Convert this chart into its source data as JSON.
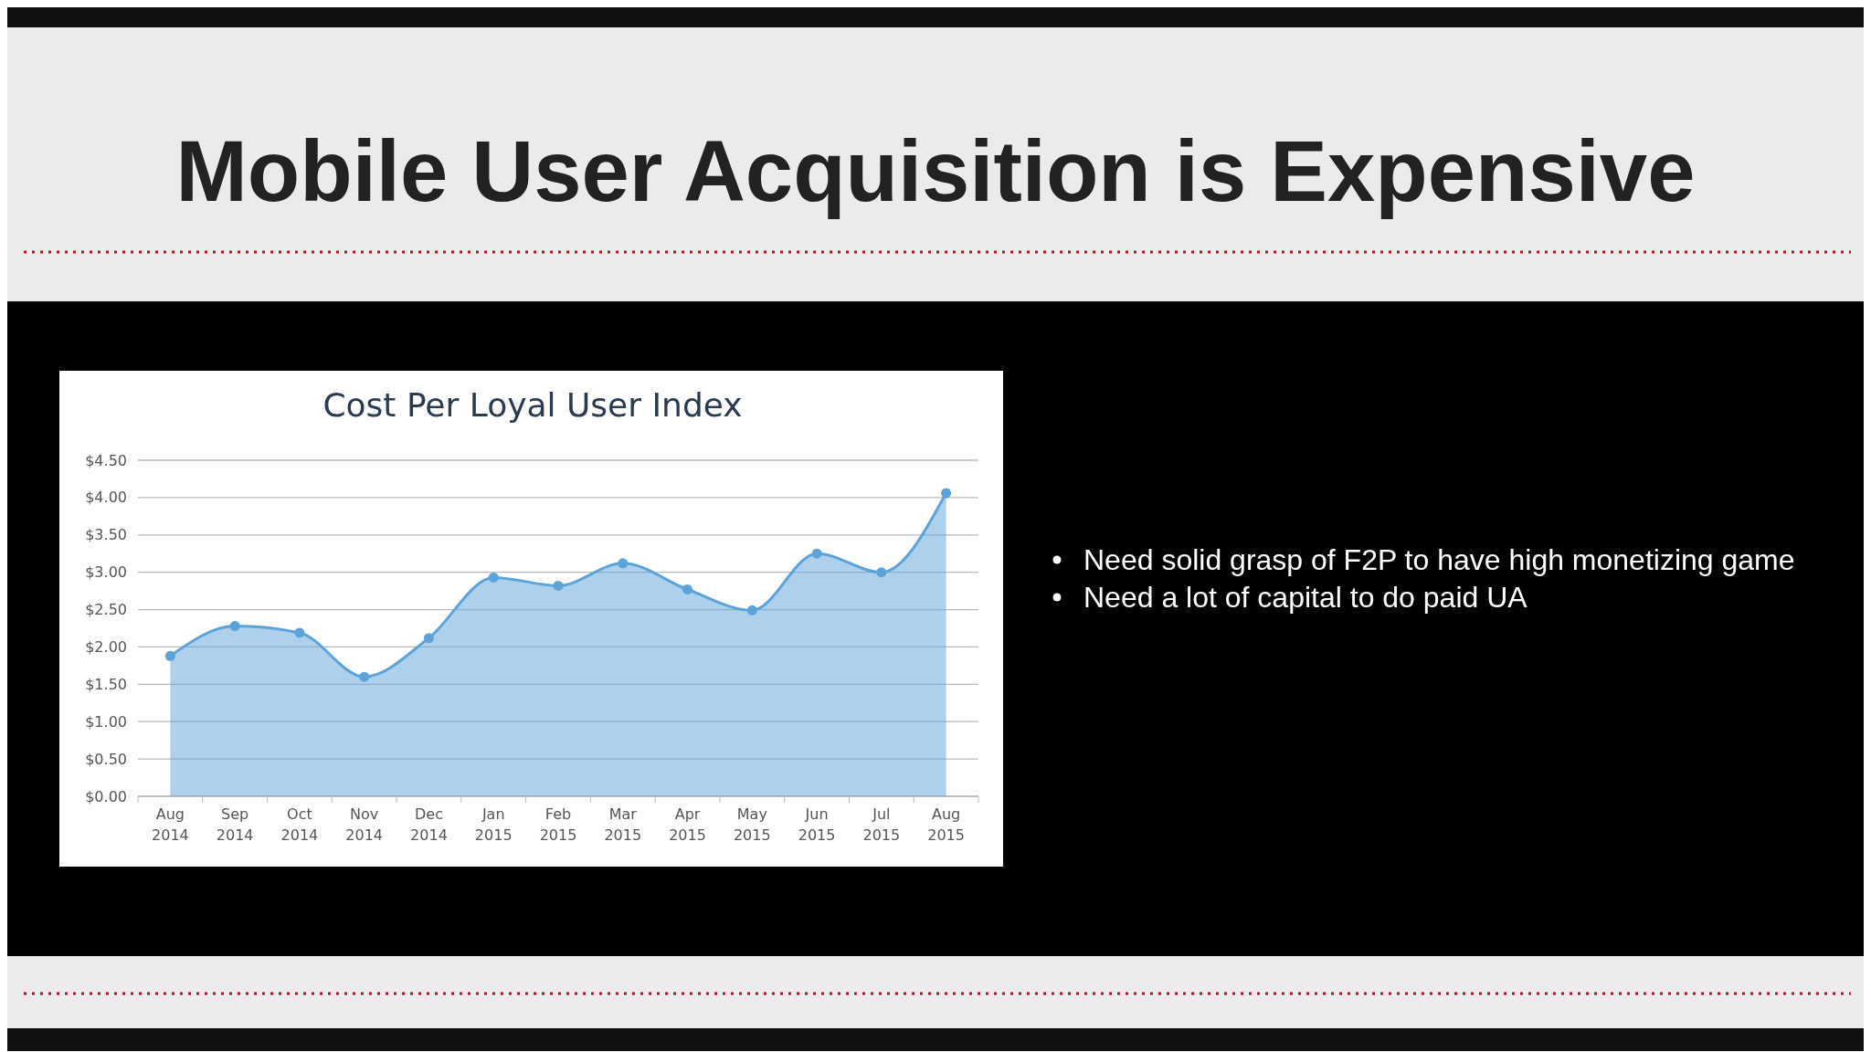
{
  "chart_data": {
    "type": "area",
    "title": "Mobile User Acquisition is Expensive",
    "subtitle": "Cost Per Loyal User Index",
    "categories": [
      "Aug 2014",
      "Sep 2014",
      "Oct 2014",
      "Nov 2014",
      "Dec 2014",
      "Jan 2015",
      "Feb 2015",
      "Mar 2015",
      "Apr 2015",
      "May 2015",
      "Jun 2015",
      "Jul 2015",
      "Aug 2015"
    ],
    "series": [
      {
        "color": "#5ba3d9",
        "values": [
          1.88,
          2.28,
          2.19,
          1.6,
          2.12,
          2.93,
          2.82,
          3.12,
          2.77,
          2.49,
          3.25,
          3.0,
          4.06
        ]
      }
    ],
    "ylim": [
      0,
      4.5
    ],
    "yticks": [
      {
        "value": 0,
        "label": "$0.00"
      },
      {
        "value": 0.5,
        "label": "$0.50"
      },
      {
        "value": 1,
        "label": "$1.00"
      },
      {
        "value": 1.5,
        "label": "$1.50"
      },
      {
        "value": 2,
        "label": "$2.00"
      },
      {
        "value": 2.5,
        "label": "$2.50"
      },
      {
        "value": 3,
        "label": "$3.00"
      },
      {
        "value": 3.5,
        "label": "$3.50"
      },
      {
        "value": 4,
        "label": "$4.00"
      },
      {
        "value": 4.5,
        "label": "$4.50"
      }
    ],
    "grid": "y",
    "marker": "circle",
    "line_style": "solid",
    "annotations": [
      "Need solid grasp of F2P to have high monetizing game",
      "Need a lot of capital to do paid UA"
    ]
  }
}
